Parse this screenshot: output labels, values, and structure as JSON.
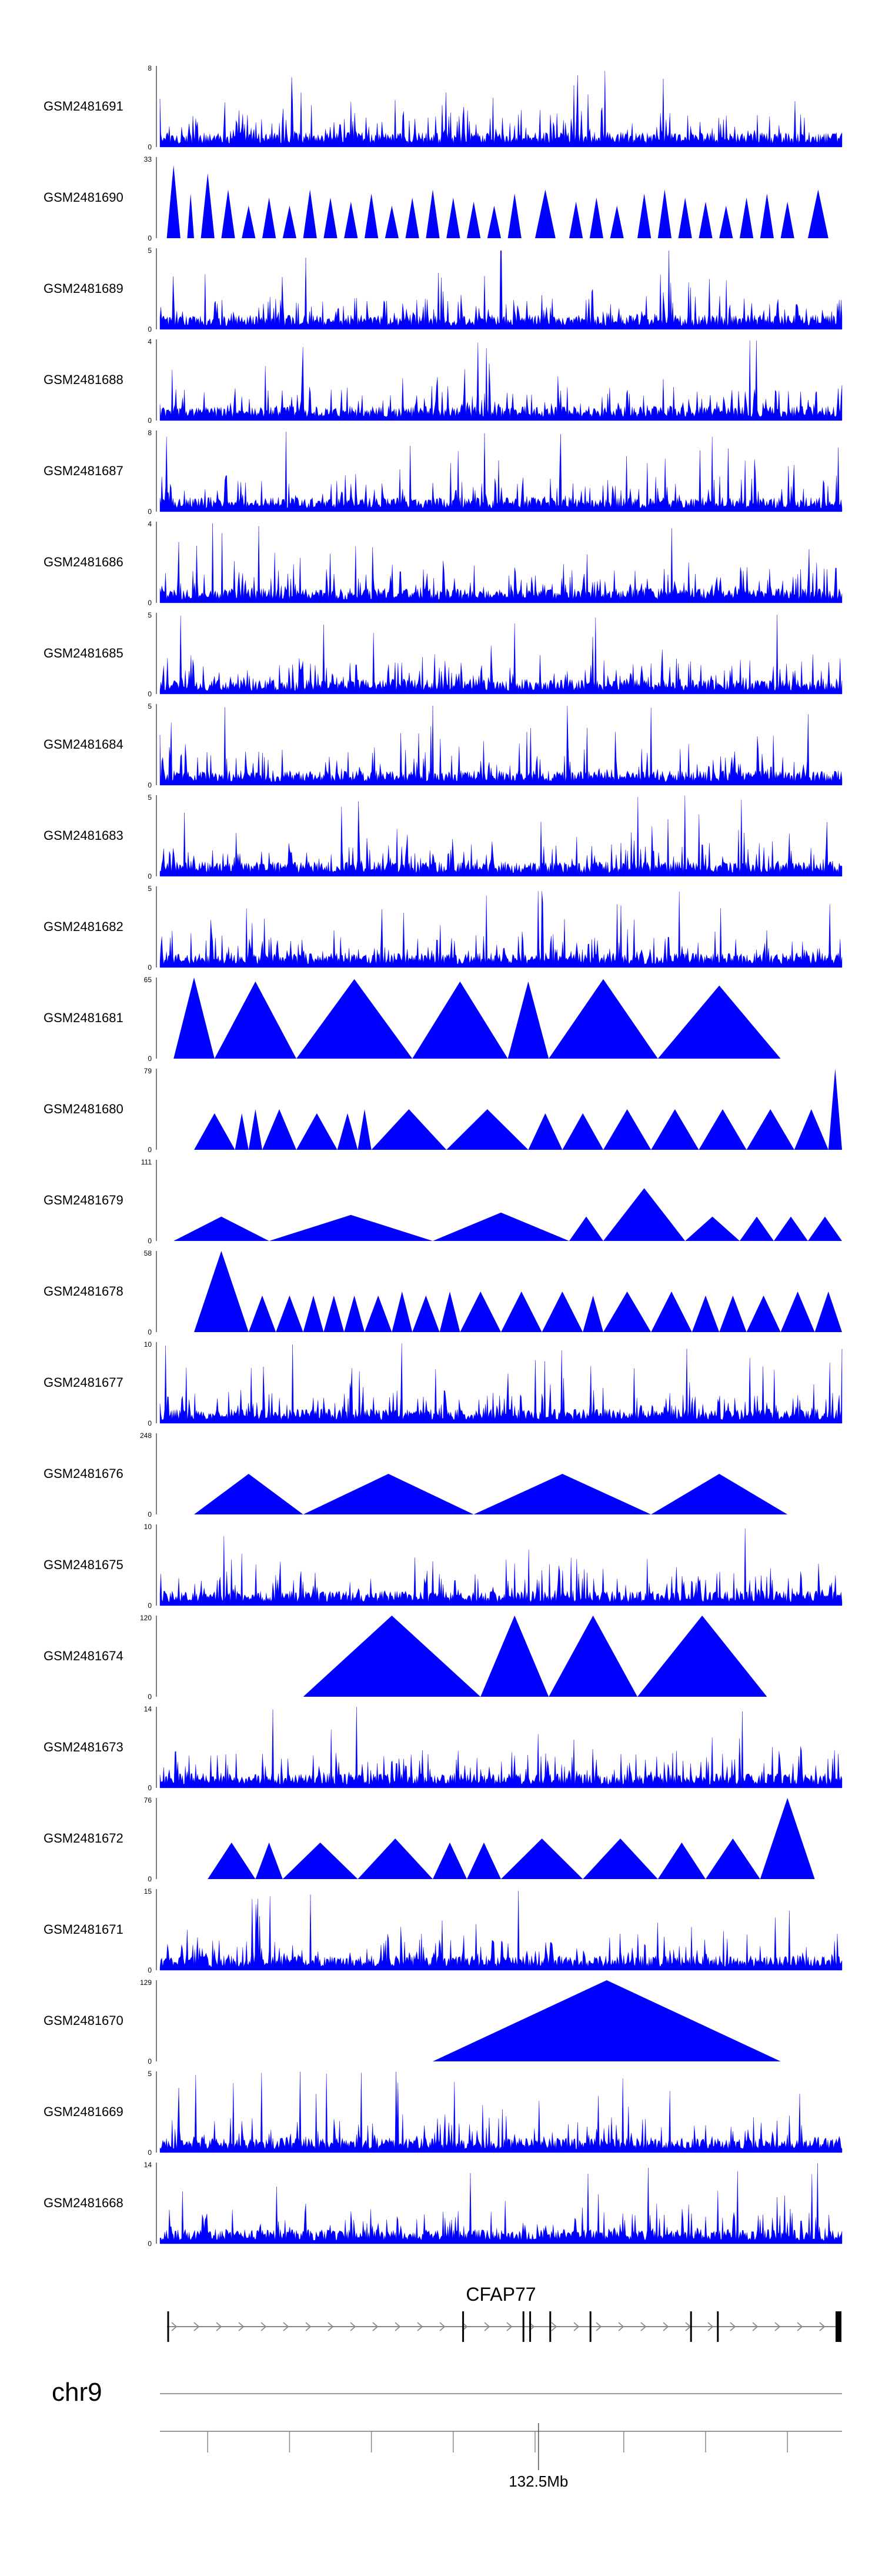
{
  "chart_data": {
    "type": "area",
    "title": "",
    "fill_color": "#0000ff",
    "track_heights": [
      8,
      33,
      5,
      4,
      8,
      4,
      5,
      5,
      5,
      5,
      65,
      79,
      111,
      58,
      10,
      248,
      10,
      120,
      14,
      76,
      15,
      129,
      5,
      14
    ],
    "tracks": [
      {
        "name": "GSM2481691",
        "ymax": "8",
        "ymin": "0",
        "style": "dense",
        "start": 0.0,
        "end": 1.0
      },
      {
        "name": "GSM2481690",
        "ymax": "33",
        "ymin": "0",
        "style": "peaks",
        "start": 0.0,
        "end": 1.0,
        "peaks": [
          [
            0.01,
            0.03,
            0.9
          ],
          [
            0.04,
            0.05,
            0.55
          ],
          [
            0.06,
            0.08,
            0.8
          ],
          [
            0.09,
            0.11,
            0.6
          ],
          [
            0.12,
            0.14,
            0.4
          ],
          [
            0.15,
            0.17,
            0.5
          ],
          [
            0.18,
            0.2,
            0.4
          ],
          [
            0.21,
            0.23,
            0.6
          ],
          [
            0.24,
            0.26,
            0.5
          ],
          [
            0.27,
            0.29,
            0.45
          ],
          [
            0.3,
            0.32,
            0.55
          ],
          [
            0.33,
            0.35,
            0.4
          ],
          [
            0.36,
            0.38,
            0.5
          ],
          [
            0.39,
            0.41,
            0.6
          ],
          [
            0.42,
            0.44,
            0.5
          ],
          [
            0.45,
            0.47,
            0.45
          ],
          [
            0.48,
            0.5,
            0.4
          ],
          [
            0.51,
            0.53,
            0.55
          ],
          [
            0.55,
            0.58,
            0.6
          ],
          [
            0.6,
            0.62,
            0.45
          ],
          [
            0.63,
            0.65,
            0.5
          ],
          [
            0.66,
            0.68,
            0.4
          ],
          [
            0.7,
            0.72,
            0.55
          ],
          [
            0.73,
            0.75,
            0.6
          ],
          [
            0.76,
            0.78,
            0.5
          ],
          [
            0.79,
            0.81,
            0.45
          ],
          [
            0.82,
            0.84,
            0.4
          ],
          [
            0.85,
            0.87,
            0.5
          ],
          [
            0.88,
            0.9,
            0.55
          ],
          [
            0.91,
            0.93,
            0.45
          ],
          [
            0.95,
            0.98,
            0.6
          ]
        ]
      },
      {
        "name": "GSM2481689",
        "ymax": "5",
        "ymin": "0",
        "style": "dense",
        "start": 0.0,
        "end": 1.0
      },
      {
        "name": "GSM2481688",
        "ymax": "4",
        "ymin": "0",
        "style": "dense",
        "start": 0.0,
        "end": 1.0
      },
      {
        "name": "GSM2481687",
        "ymax": "8",
        "ymin": "0",
        "style": "dense",
        "start": 0.0,
        "end": 1.0
      },
      {
        "name": "GSM2481686",
        "ymax": "4",
        "ymin": "0",
        "style": "dense",
        "start": 0.0,
        "end": 1.0
      },
      {
        "name": "GSM2481685",
        "ymax": "5",
        "ymin": "0",
        "style": "dense",
        "start": 0.0,
        "end": 1.0
      },
      {
        "name": "GSM2481684",
        "ymax": "5",
        "ymin": "0",
        "style": "dense",
        "start": 0.0,
        "end": 1.0
      },
      {
        "name": "GSM2481683",
        "ymax": "5",
        "ymin": "0",
        "style": "dense",
        "start": 0.0,
        "end": 1.0
      },
      {
        "name": "GSM2481682",
        "ymax": "5",
        "ymin": "0",
        "style": "dense",
        "start": 0.0,
        "end": 1.0
      },
      {
        "name": "GSM2481681",
        "ymax": "65",
        "ymin": "0",
        "style": "peaks",
        "start": 0.02,
        "end": 0.92,
        "peaks": [
          [
            0.02,
            0.08,
            1.0
          ],
          [
            0.08,
            0.2,
            0.95
          ],
          [
            0.2,
            0.37,
            0.98
          ],
          [
            0.37,
            0.51,
            0.95
          ],
          [
            0.51,
            0.57,
            0.95
          ],
          [
            0.57,
            0.73,
            0.98
          ],
          [
            0.73,
            0.91,
            0.9
          ]
        ]
      },
      {
        "name": "GSM2481680",
        "ymax": "79",
        "ymin": "0",
        "style": "peaks",
        "start": 0.05,
        "end": 1.0,
        "peaks": [
          [
            0.05,
            0.11,
            0.45
          ],
          [
            0.11,
            0.13,
            0.45
          ],
          [
            0.13,
            0.15,
            0.5
          ],
          [
            0.15,
            0.2,
            0.5
          ],
          [
            0.2,
            0.26,
            0.45
          ],
          [
            0.26,
            0.29,
            0.45
          ],
          [
            0.29,
            0.31,
            0.5
          ],
          [
            0.31,
            0.42,
            0.5
          ],
          [
            0.42,
            0.54,
            0.5
          ],
          [
            0.54,
            0.59,
            0.45
          ],
          [
            0.59,
            0.65,
            0.45
          ],
          [
            0.65,
            0.72,
            0.5
          ],
          [
            0.72,
            0.79,
            0.5
          ],
          [
            0.79,
            0.86,
            0.5
          ],
          [
            0.86,
            0.93,
            0.5
          ],
          [
            0.93,
            0.98,
            0.5
          ],
          [
            0.98,
            1.0,
            1.0
          ]
        ]
      },
      {
        "name": "GSM2481679",
        "ymax": "111",
        "ymin": "0",
        "style": "peaks",
        "start": 0.02,
        "end": 1.0,
        "peaks": [
          [
            0.02,
            0.16,
            0.3
          ],
          [
            0.16,
            0.4,
            0.32
          ],
          [
            0.4,
            0.6,
            0.35
          ],
          [
            0.6,
            0.65,
            0.3
          ],
          [
            0.65,
            0.77,
            0.65
          ],
          [
            0.77,
            0.85,
            0.3
          ],
          [
            0.85,
            0.9,
            0.3
          ],
          [
            0.9,
            0.95,
            0.3
          ],
          [
            0.95,
            1.0,
            0.3
          ]
        ]
      },
      {
        "name": "GSM2481678",
        "ymax": "58",
        "ymin": "0",
        "style": "peaks",
        "start": 0.05,
        "end": 1.0,
        "peaks": [
          [
            0.05,
            0.13,
            1.0
          ],
          [
            0.13,
            0.17,
            0.45
          ],
          [
            0.17,
            0.21,
            0.45
          ],
          [
            0.21,
            0.24,
            0.45
          ],
          [
            0.24,
            0.27,
            0.45
          ],
          [
            0.27,
            0.3,
            0.45
          ],
          [
            0.3,
            0.34,
            0.45
          ],
          [
            0.34,
            0.37,
            0.5
          ],
          [
            0.37,
            0.41,
            0.45
          ],
          [
            0.41,
            0.44,
            0.5
          ],
          [
            0.44,
            0.5,
            0.5
          ],
          [
            0.5,
            0.56,
            0.5
          ],
          [
            0.56,
            0.62,
            0.5
          ],
          [
            0.62,
            0.65,
            0.45
          ],
          [
            0.65,
            0.72,
            0.5
          ],
          [
            0.72,
            0.78,
            0.5
          ],
          [
            0.78,
            0.82,
            0.45
          ],
          [
            0.82,
            0.86,
            0.45
          ],
          [
            0.86,
            0.91,
            0.45
          ],
          [
            0.91,
            0.96,
            0.5
          ],
          [
            0.96,
            1.0,
            0.5
          ]
        ]
      },
      {
        "name": "GSM2481677",
        "ymax": "10",
        "ymin": "0",
        "style": "dense",
        "start": 0.0,
        "end": 1.0
      },
      {
        "name": "GSM2481676",
        "ymax": "248",
        "ymin": "0",
        "style": "peaks",
        "start": 0.05,
        "end": 0.92,
        "peaks": [
          [
            0.05,
            0.21,
            0.5
          ],
          [
            0.21,
            0.46,
            0.5
          ],
          [
            0.46,
            0.72,
            0.5
          ],
          [
            0.72,
            0.92,
            0.5
          ]
        ]
      },
      {
        "name": "GSM2481675",
        "ymax": "10",
        "ymin": "0",
        "style": "dense",
        "start": 0.0,
        "end": 1.0
      },
      {
        "name": "GSM2481674",
        "ymax": "120",
        "ymin": "0",
        "style": "peaks",
        "start": 0.21,
        "end": 0.9,
        "peaks": [
          [
            0.21,
            0.47,
            1.0
          ],
          [
            0.47,
            0.57,
            1.0
          ],
          [
            0.57,
            0.7,
            1.0
          ],
          [
            0.7,
            0.89,
            1.0
          ]
        ]
      },
      {
        "name": "GSM2481673",
        "ymax": "14",
        "ymin": "0",
        "style": "dense",
        "start": 0.0,
        "end": 1.0
      },
      {
        "name": "GSM2481672",
        "ymax": "76",
        "ymin": "0",
        "style": "peaks",
        "start": 0.07,
        "end": 0.96,
        "peaks": [
          [
            0.07,
            0.14,
            0.45
          ],
          [
            0.14,
            0.18,
            0.45
          ],
          [
            0.18,
            0.29,
            0.45
          ],
          [
            0.29,
            0.4,
            0.5
          ],
          [
            0.4,
            0.45,
            0.45
          ],
          [
            0.45,
            0.5,
            0.45
          ],
          [
            0.5,
            0.62,
            0.5
          ],
          [
            0.62,
            0.73,
            0.5
          ],
          [
            0.73,
            0.8,
            0.45
          ],
          [
            0.8,
            0.88,
            0.5
          ],
          [
            0.88,
            0.96,
            1.0
          ]
        ]
      },
      {
        "name": "GSM2481671",
        "ymax": "15",
        "ymin": "0",
        "style": "dense",
        "start": 0.0,
        "end": 1.0
      },
      {
        "name": "GSM2481670",
        "ymax": "129",
        "ymin": "0",
        "style": "peaks",
        "start": 0.4,
        "end": 0.91,
        "peaks": [
          [
            0.4,
            0.91,
            1.0
          ]
        ]
      },
      {
        "name": "GSM2481669",
        "ymax": "5",
        "ymin": "0",
        "style": "dense",
        "start": 0.0,
        "end": 1.0
      },
      {
        "name": "GSM2481668",
        "ymax": "14",
        "ymin": "0",
        "style": "dense",
        "start": 0.0,
        "end": 1.0
      }
    ],
    "gene": {
      "name": "CFAP77",
      "strand": "+",
      "exons": [
        0.0,
        0.44,
        0.53,
        0.54,
        0.57,
        0.63,
        0.78,
        0.82,
        1.0
      ]
    },
    "chromosome": "chr9",
    "axis_tick_label": "132.5Mb",
    "axis_label_position": 0.555,
    "minor_ticks": [
      0.07,
      0.19,
      0.31,
      0.43,
      0.55,
      0.68,
      0.8,
      0.92
    ]
  }
}
